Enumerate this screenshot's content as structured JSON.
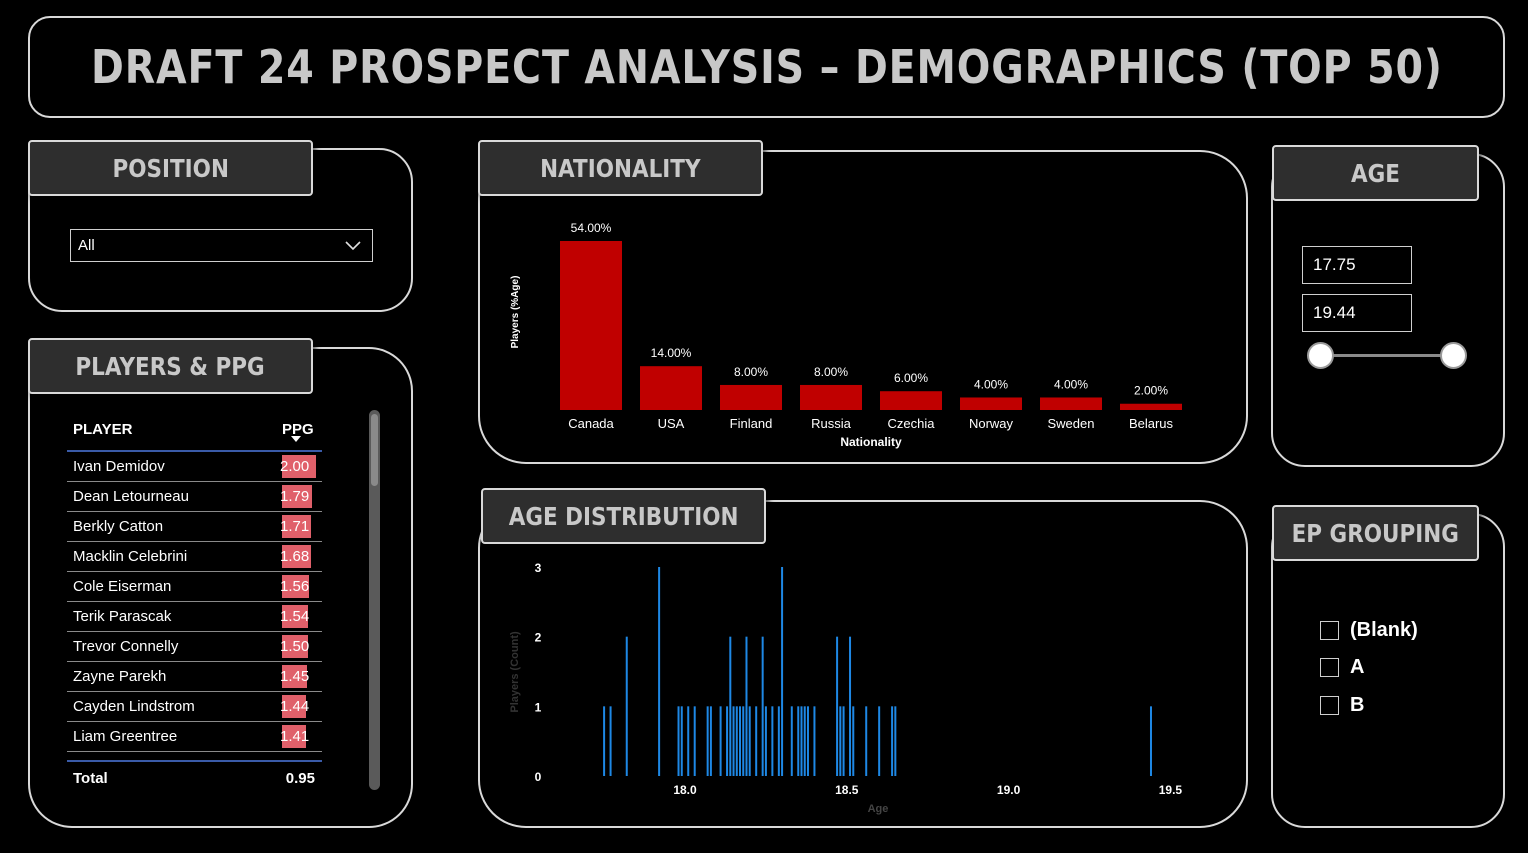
{
  "header": {
    "title": "DRAFT 24 PROSPECT ANALYSIS –  DEMOGRAPHICS (TOP 50)"
  },
  "position": {
    "title": "POSITION",
    "selected": "All"
  },
  "players": {
    "title": "PLAYERS & PPG",
    "col_player": "PLAYER",
    "col_ppg": "PPG",
    "rows": [
      {
        "name": "Ivan Demidov",
        "ppg": "2.00",
        "value": 2.0
      },
      {
        "name": "Dean Letourneau",
        "ppg": "1.79",
        "value": 1.79
      },
      {
        "name": "Berkly Catton",
        "ppg": "1.71",
        "value": 1.71
      },
      {
        "name": "Macklin Celebrini",
        "ppg": "1.68",
        "value": 1.68
      },
      {
        "name": "Cole Eiserman",
        "ppg": "1.56",
        "value": 1.56
      },
      {
        "name": "Terik Parascak",
        "ppg": "1.54",
        "value": 1.54
      },
      {
        "name": "Trevor Connelly",
        "ppg": "1.50",
        "value": 1.5
      },
      {
        "name": "Zayne Parekh",
        "ppg": "1.45",
        "value": 1.45
      },
      {
        "name": "Cayden Lindstrom",
        "ppg": "1.44",
        "value": 1.44
      },
      {
        "name": "Liam Greentree",
        "ppg": "1.41",
        "value": 1.41
      }
    ],
    "total_label": "Total",
    "total_value": "0.95"
  },
  "nationality": {
    "title": "NATIONALITY"
  },
  "age": {
    "title": "AGE",
    "min": "17.75",
    "max": "19.44"
  },
  "age_distribution": {
    "title": "AGE DISTRIBUTION"
  },
  "ep_grouping": {
    "title": "EP GROUPING",
    "options": [
      "(Blank)",
      "A",
      "B"
    ]
  },
  "colors": {
    "bar_red": "#c00000",
    "bar_blue": "#1e88e5",
    "ppg_bar": "#e0606a"
  },
  "chart_data": [
    {
      "type": "bar",
      "title": "NATIONALITY",
      "xlabel": "Nationality",
      "ylabel": "Players (%Age)",
      "categories": [
        "Canada",
        "USA",
        "Finland",
        "Russia",
        "Czechia",
        "Norway",
        "Sweden",
        "Belarus"
      ],
      "values": [
        54,
        14,
        8,
        8,
        6,
        4,
        4,
        2
      ],
      "labels": [
        "54.00%",
        "14.00%",
        "8.00%",
        "8.00%",
        "6.00%",
        "4.00%",
        "4.00%",
        "2.00%"
      ],
      "ylim": [
        0,
        54
      ]
    },
    {
      "type": "bar",
      "title": "AGE DISTRIBUTION",
      "xlabel": "Age",
      "ylabel": "Players (Count)",
      "x": [
        17.75,
        17.77,
        17.82,
        17.92,
        17.98,
        17.99,
        18.01,
        18.03,
        18.07,
        18.08,
        18.11,
        18.13,
        18.14,
        18.15,
        18.16,
        18.17,
        18.18,
        18.19,
        18.2,
        18.22,
        18.24,
        18.25,
        18.27,
        18.29,
        18.3,
        18.33,
        18.35,
        18.36,
        18.37,
        18.38,
        18.4,
        18.47,
        18.48,
        18.49,
        18.51,
        18.52,
        18.56,
        18.6,
        18.64,
        18.65,
        19.44
      ],
      "values": [
        1,
        1,
        2,
        3,
        1,
        1,
        1,
        1,
        1,
        1,
        1,
        1,
        2,
        1,
        1,
        1,
        1,
        2,
        1,
        1,
        2,
        1,
        1,
        1,
        3,
        1,
        1,
        1,
        1,
        1,
        1,
        2,
        1,
        1,
        2,
        1,
        1,
        1,
        1,
        1,
        1
      ],
      "xticks": [
        "18.0",
        "18.5",
        "19.0",
        "19.5"
      ],
      "yticks": [
        "0",
        "1",
        "2",
        "3"
      ],
      "xlim": [
        17.7,
        19.55
      ],
      "ylim": [
        0,
        3
      ]
    }
  ]
}
